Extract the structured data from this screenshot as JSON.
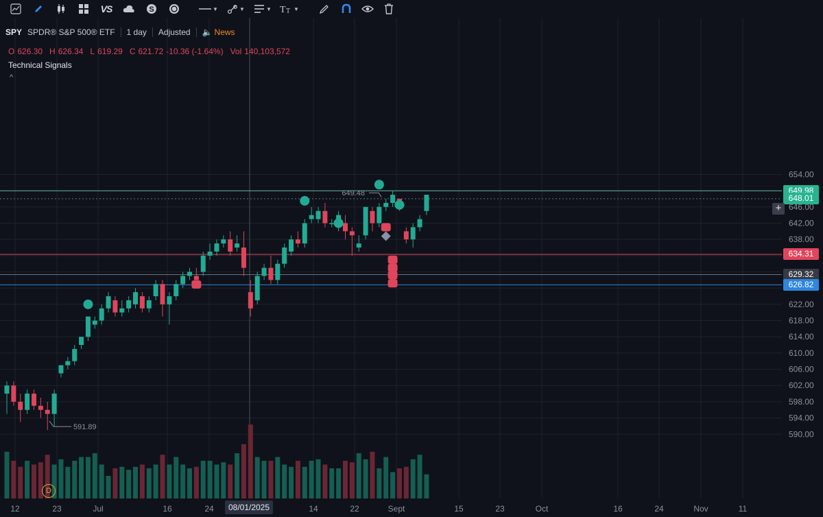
{
  "toolbar": {
    "icons": [
      "chart-icon",
      "pencil-icon",
      "candles-icon",
      "grid-icon",
      "vs-icon",
      "cloud-icon",
      "dollar-icon",
      "play-icon",
      "line-tool-icon",
      "brush-tool-icon",
      "text-align-icon",
      "text-tool-icon",
      "draw-icon",
      "magnet-icon",
      "eye-icon",
      "trash-icon"
    ],
    "vs_label": "VS"
  },
  "header": {
    "symbol": "SPY",
    "name": "SPDR® S&P 500® ETF",
    "interval": "1 day",
    "adjustment": "Adjusted",
    "news_label": "News"
  },
  "ohlc": {
    "o_label": "O",
    "o": "626.30",
    "h_label": "H",
    "h": "626.34",
    "l_label": "L",
    "l": "619.29",
    "c_label": "C",
    "c": "621.72",
    "change": "-10.36 (-1.64%)",
    "vol_label": "Vol",
    "vol": "140,103,572"
  },
  "study_label": "Technical Signals",
  "colors": {
    "up": "#22ab94",
    "down": "#e0455c",
    "bg": "#0f121a",
    "grid": "#1e222d"
  },
  "price_tags": [
    {
      "text": "649.98",
      "color": "#28b390",
      "price": 649.98
    },
    {
      "text": "648.01",
      "color": "#28b390",
      "price": 648.01
    },
    {
      "text": "634.31",
      "color": "#e0455c",
      "price": 634.31
    },
    {
      "text": "629.32",
      "color": "#363a45",
      "price": 629.32
    },
    {
      "text": "626.82",
      "color": "#2e86de",
      "price": 626.82
    }
  ],
  "markers": {
    "high_label": "649.48",
    "low_label": "591.89",
    "dividend_label": "D"
  },
  "crosshair_date": "08/01/2025",
  "chart_data": {
    "type": "candlestick",
    "y_ticks": [
      "654.00",
      "650.00",
      "646.00",
      "642.00",
      "638.00",
      "634.00",
      "630.00",
      "626.00",
      "622.00",
      "618.00",
      "614.00",
      "610.00",
      "606.00",
      "602.00",
      "598.00",
      "594.00",
      "590.00"
    ],
    "x_ticks": [
      "12",
      "23",
      "Jul",
      "16",
      "24",
      "08/01/2025",
      "14",
      "22",
      "Sept",
      "15",
      "23",
      "Oct",
      "16",
      "24",
      "Nov",
      "11"
    ],
    "candles": [
      {
        "o": 600,
        "h": 603,
        "l": 595,
        "c": 602
      },
      {
        "o": 602,
        "h": 603,
        "l": 597,
        "c": 598
      },
      {
        "o": 598,
        "h": 600,
        "l": 593,
        "c": 596
      },
      {
        "o": 596,
        "h": 601,
        "l": 595,
        "c": 600
      },
      {
        "o": 600,
        "h": 601,
        "l": 596,
        "c": 597
      },
      {
        "o": 597,
        "h": 599,
        "l": 594,
        "c": 596
      },
      {
        "o": 596,
        "h": 598,
        "l": 591,
        "c": 595
      },
      {
        "o": 595,
        "h": 601,
        "l": 592,
        "c": 600
      },
      {
        "o": 605,
        "h": 607,
        "l": 604,
        "c": 607
      },
      {
        "o": 607,
        "h": 609,
        "l": 606,
        "c": 608
      },
      {
        "o": 608,
        "h": 612,
        "l": 607,
        "c": 611
      },
      {
        "o": 612,
        "h": 614,
        "l": 611,
        "c": 614
      },
      {
        "o": 614,
        "h": 619,
        "l": 613,
        "c": 619
      },
      {
        "o": 617,
        "h": 619,
        "l": 616,
        "c": 618
      },
      {
        "o": 618,
        "h": 622,
        "l": 617,
        "c": 621
      },
      {
        "o": 621,
        "h": 625,
        "l": 620,
        "c": 624
      },
      {
        "o": 623,
        "h": 624,
        "l": 619,
        "c": 620
      },
      {
        "o": 620,
        "h": 623,
        "l": 619,
        "c": 621
      },
      {
        "o": 621,
        "h": 624,
        "l": 620,
        "c": 623
      },
      {
        "o": 622,
        "h": 626,
        "l": 621,
        "c": 625
      },
      {
        "o": 624,
        "h": 625,
        "l": 620,
        "c": 621
      },
      {
        "o": 621,
        "h": 624,
        "l": 620,
        "c": 623
      },
      {
        "o": 624,
        "h": 628,
        "l": 623,
        "c": 627
      },
      {
        "o": 627,
        "h": 628,
        "l": 619,
        "c": 622
      },
      {
        "o": 622,
        "h": 625,
        "l": 617,
        "c": 624
      },
      {
        "o": 624,
        "h": 628,
        "l": 623,
        "c": 627
      },
      {
        "o": 627,
        "h": 630,
        "l": 626,
        "c": 629
      },
      {
        "o": 629,
        "h": 631,
        "l": 628,
        "c": 630
      },
      {
        "o": 629,
        "h": 631,
        "l": 626,
        "c": 628
      },
      {
        "o": 630,
        "h": 635,
        "l": 629,
        "c": 634
      },
      {
        "o": 634,
        "h": 637,
        "l": 633,
        "c": 635
      },
      {
        "o": 635,
        "h": 638,
        "l": 634,
        "c": 637
      },
      {
        "o": 637,
        "h": 639,
        "l": 636,
        "c": 638
      },
      {
        "o": 638,
        "h": 640,
        "l": 634,
        "c": 635
      },
      {
        "o": 636,
        "h": 639,
        "l": 635,
        "c": 637
      },
      {
        "o": 636,
        "h": 640,
        "l": 629,
        "c": 631
      },
      {
        "o": 625,
        "h": 628,
        "l": 619,
        "c": 621
      },
      {
        "o": 623,
        "h": 630,
        "l": 622,
        "c": 629
      },
      {
        "o": 629,
        "h": 632,
        "l": 628,
        "c": 631
      },
      {
        "o": 631,
        "h": 634,
        "l": 627,
        "c": 628
      },
      {
        "o": 628,
        "h": 633,
        "l": 627,
        "c": 632
      },
      {
        "o": 632,
        "h": 637,
        "l": 631,
        "c": 636
      },
      {
        "o": 635,
        "h": 639,
        "l": 634,
        "c": 638
      },
      {
        "o": 638,
        "h": 640,
        "l": 636,
        "c": 637
      },
      {
        "o": 637,
        "h": 643,
        "l": 636,
        "c": 642
      },
      {
        "o": 643,
        "h": 646,
        "l": 642,
        "c": 644
      },
      {
        "o": 643,
        "h": 646,
        "l": 642,
        "c": 645
      },
      {
        "o": 645,
        "h": 647,
        "l": 641,
        "c": 642
      },
      {
        "o": 642,
        "h": 643,
        "l": 641,
        "c": 642
      },
      {
        "o": 642,
        "h": 645,
        "l": 640,
        "c": 644
      },
      {
        "o": 642,
        "h": 644,
        "l": 638,
        "c": 640
      },
      {
        "o": 640,
        "h": 641,
        "l": 634,
        "c": 639
      },
      {
        "o": 636,
        "h": 639,
        "l": 635,
        "c": 637
      },
      {
        "o": 639,
        "h": 646,
        "l": 638,
        "c": 646
      },
      {
        "o": 645,
        "h": 646,
        "l": 640,
        "c": 642
      },
      {
        "o": 642,
        "h": 647,
        "l": 641,
        "c": 646
      },
      {
        "o": 646,
        "h": 648,
        "l": 645,
        "c": 647
      },
      {
        "o": 647,
        "h": 650,
        "l": 646,
        "c": 649
      },
      {
        "o": 648,
        "h": 648,
        "l": 645,
        "c": 646
      },
      {
        "o": 640,
        "h": 641,
        "l": 637,
        "c": 638
      },
      {
        "o": 638,
        "h": 642,
        "l": 636,
        "c": 641
      },
      {
        "o": 641,
        "h": 644,
        "l": 640,
        "c": 643
      },
      {
        "o": 645,
        "h": 649,
        "l": 644,
        "c": 649
      }
    ],
    "volumes": [
      0.62,
      0.5,
      0.42,
      0.5,
      0.45,
      0.48,
      0.58,
      0.45,
      0.52,
      0.42,
      0.5,
      0.55,
      0.55,
      0.6,
      0.45,
      0.3,
      0.4,
      0.42,
      0.38,
      0.42,
      0.45,
      0.4,
      0.45,
      0.58,
      0.45,
      0.55,
      0.45,
      0.4,
      0.42,
      0.5,
      0.5,
      0.45,
      0.48,
      0.45,
      0.6,
      0.72,
      0.98,
      0.55,
      0.5,
      0.5,
      0.55,
      0.45,
      0.42,
      0.5,
      0.42,
      0.5,
      0.52,
      0.45,
      0.4,
      0.4,
      0.5,
      0.48,
      0.6,
      0.52,
      0.62,
      0.4,
      0.55,
      0.35,
      0.4,
      0.42,
      0.52,
      0.58,
      0.32
    ],
    "circles": [
      {
        "i": 12,
        "price": 622
      },
      {
        "i": 44,
        "price": 647.5
      },
      {
        "i": 49,
        "price": 642
      },
      {
        "i": 55,
        "price": 651.5
      },
      {
        "i": 58,
        "price": 646.5
      }
    ],
    "down_squares": [
      {
        "i": 28,
        "price": 626.9
      },
      {
        "i": 56,
        "price": 641
      },
      {
        "i": 57,
        "price": 633
      },
      {
        "i": 57,
        "price": 631
      },
      {
        "i": 57,
        "price": 629.2
      },
      {
        "i": 57,
        "price": 627.2
      }
    ],
    "diamond": {
      "i": 56,
      "price": 638.8
    },
    "high_price": 649.48,
    "low_price": 591.89
  }
}
